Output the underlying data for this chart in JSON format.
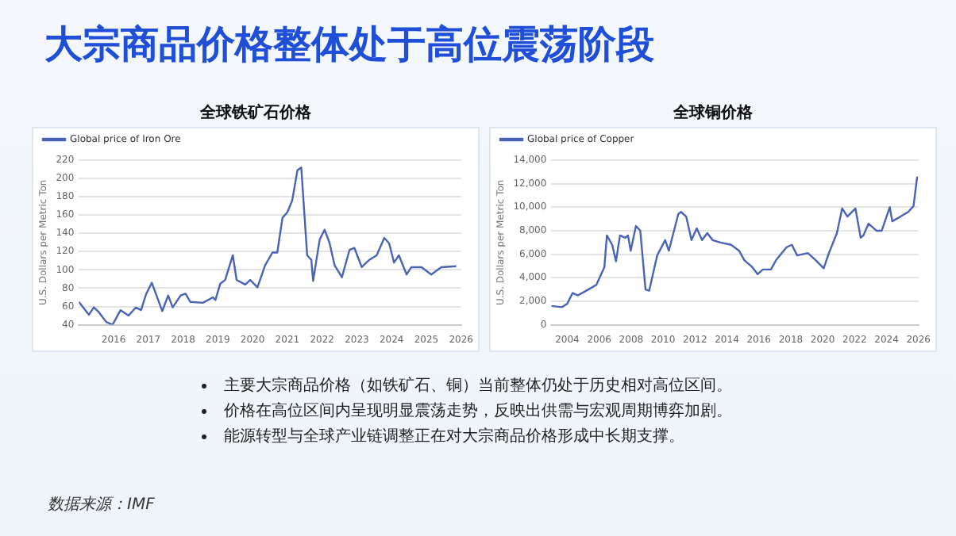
{
  "chart_data": [
    {
      "type": "line",
      "title": "全球铁矿石价格",
      "ylabel": "U.S. Dollars per Metric Ton",
      "legend": "top left",
      "grid": "y",
      "xlim": [
        2015,
        2026
      ],
      "xticks": [
        2016,
        2017,
        2018,
        2019,
        2020,
        2021,
        2022,
        2023,
        2024,
        2025,
        2026
      ],
      "ylim": [
        40,
        220
      ],
      "yticks": [
        40,
        60,
        80,
        100,
        120,
        140,
        160,
        180,
        200,
        220
      ],
      "series": [
        {
          "name": "Global price of Iron Ore",
          "color": "#4a63b5",
          "x": [
            2015.0,
            2015.29,
            2015.43,
            2015.57,
            2015.79,
            2015.97,
            2016.2,
            2016.43,
            2016.64,
            2016.79,
            2016.93,
            2017.1,
            2017.4,
            2017.57,
            2017.7,
            2017.93,
            2018.07,
            2018.21,
            2018.57,
            2018.86,
            2018.93,
            2019.07,
            2019.21,
            2019.43,
            2019.54,
            2019.79,
            2019.93,
            2020.14,
            2020.36,
            2020.57,
            2020.71,
            2020.86,
            2021.0,
            2021.14,
            2021.29,
            2021.4,
            2021.57,
            2021.69,
            2021.74,
            2021.93,
            2022.07,
            2022.21,
            2022.36,
            2022.57,
            2022.79,
            2022.93,
            2023.14,
            2023.36,
            2023.57,
            2023.79,
            2023.93,
            2024.07,
            2024.21,
            2024.43,
            2024.57,
            2024.86,
            2025.14,
            2025.43,
            2025.86
          ],
          "values": [
            65,
            51,
            59,
            54,
            43,
            40,
            56,
            50,
            59,
            56,
            73,
            86,
            55,
            72,
            59,
            72,
            74,
            65,
            64,
            70,
            67,
            85,
            89,
            116,
            89,
            84,
            89,
            81,
            105,
            119,
            119,
            157,
            163,
            176,
            209,
            212,
            116,
            111,
            88,
            133,
            144,
            130,
            105,
            92,
            122,
            124,
            103,
            111,
            116,
            135,
            129,
            108,
            116,
            95,
            103,
            103,
            95,
            103,
            104
          ]
        }
      ]
    },
    {
      "type": "line",
      "title": "全球铜价格",
      "ylabel": "U.S. Dollars per Metric Ton",
      "legend": "top left",
      "grid": "y",
      "xlim": [
        2003,
        2026
      ],
      "xticks": [
        2004,
        2006,
        2008,
        2010,
        2012,
        2014,
        2016,
        2018,
        2020,
        2022,
        2024,
        2026
      ],
      "ylim": [
        0,
        14000
      ],
      "yticks": [
        0,
        {
          "value": 2000,
          "label": "2,000"
        },
        {
          "value": 4000,
          "label": "4,000"
        },
        {
          "value": 6000,
          "label": "6,000"
        },
        {
          "value": 8000,
          "label": "8,000"
        },
        {
          "value": 10000,
          "label": "10,000"
        },
        {
          "value": 12000,
          "label": "12,000"
        },
        {
          "value": 14000,
          "label": "14,000"
        }
      ],
      "series": [
        {
          "name": "Global price of Copper",
          "color": "#4a63b5",
          "x": [
            2003.0,
            2003.67,
            2004.0,
            2004.33,
            2004.66,
            2005.32,
            2005.82,
            2006.32,
            2006.48,
            2006.81,
            2007.05,
            2007.3,
            2007.64,
            2007.8,
            2007.97,
            2008.3,
            2008.57,
            2008.9,
            2009.13,
            2009.63,
            2010.13,
            2010.36,
            2010.95,
            2011.12,
            2011.45,
            2011.78,
            2012.11,
            2012.44,
            2012.77,
            2013.1,
            2013.6,
            2014.26,
            2014.76,
            2015.09,
            2015.59,
            2015.92,
            2016.25,
            2016.75,
            2017.08,
            2017.74,
            2018.07,
            2018.4,
            2019.07,
            2019.56,
            2020.06,
            2020.39,
            2020.89,
            2021.22,
            2021.55,
            2022.05,
            2022.38,
            2022.55,
            2022.87,
            2023.37,
            2023.7,
            2024.2,
            2024.36,
            2024.86,
            2025.36,
            2025.69,
            2025.92
          ],
          "values": [
            1600,
            1500,
            1800,
            2700,
            2500,
            3000,
            3400,
            4900,
            7600,
            6800,
            5400,
            7600,
            7400,
            7600,
            6300,
            8400,
            8000,
            3000,
            2900,
            5900,
            7200,
            6300,
            9400,
            9600,
            9200,
            7200,
            8200,
            7200,
            7800,
            7200,
            7000,
            6800,
            6300,
            5500,
            4900,
            4300,
            4700,
            4700,
            5500,
            6600,
            6800,
            5900,
            6100,
            5500,
            4800,
            6100,
            7800,
            9900,
            9200,
            9900,
            7400,
            7600,
            8600,
            8000,
            8000,
            10000,
            8800,
            9200,
            9600,
            10100,
            12600
          ]
        }
      ]
    },
    {
      "type": "other",
      "title": "大宗商品价格整体处于高位震荡阶段",
      "annotations": [
        "主要大宗商品价格（如铁矿石、铜）当前整体仍处于历史相对高位区间。",
        "价格在高位区间内呈现明显震荡走势，反映出供需与宏观周期博弈加剧。",
        "能源转型与全球产业链调整正在对大宗商品价格形成中长期支撑。",
        "数据来源：IMF"
      ]
    }
  ]
}
